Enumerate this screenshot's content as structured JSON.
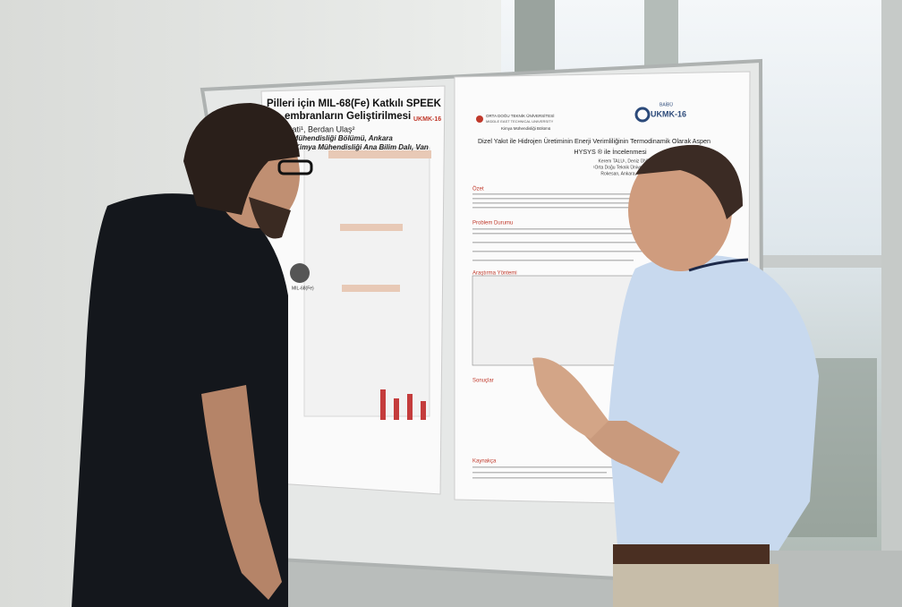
{
  "left_poster": {
    "title_line1": "Pilleri için MIL-68(Fe) Katkılı SPEEK",
    "title_line2": "embranların Geliştirilmesi",
    "authors": "zati¹, Berdan Ulaş²",
    "affiliation1": "a Mühendisliği Bölümü, Ankara",
    "affiliation2": "si, Kimya Mühendisliği Ana Bilim Dalı, Van",
    "logo": "UKMK-16",
    "figure_label": "MIL-68(Fe)"
  },
  "right_poster": {
    "university": "ORTA DOĞU TEKNİK ÜNİVERSİTESİ",
    "university_en": "MIDDLE EAST TECHNICAL UNIVERSITY",
    "department": "Kimya Mühendisliği Bölümü",
    "logo_small": "BAİBÜ",
    "logo": "UKMK-16",
    "title_line1": "Dizel Yakıt ile Hidrojen Üretiminin Enerji Verimliliğinin Termodinamik Olarak Aspen",
    "title_line2": "HYSYS ® ile İncelenmesi",
    "authors": "Kerem TALU¹, Deniz ÜNER¹",
    "affiliation1": "¹Orta Doğu Teknik Üniversitesi, Ankara, Tü",
    "affiliation2": "Rokesan, Ankara, Türkiye",
    "sections": [
      "Özet",
      "Problem Durumu",
      "Araştırma Yöntemi",
      "Sonuçlar",
      "Kaynakça"
    ]
  }
}
